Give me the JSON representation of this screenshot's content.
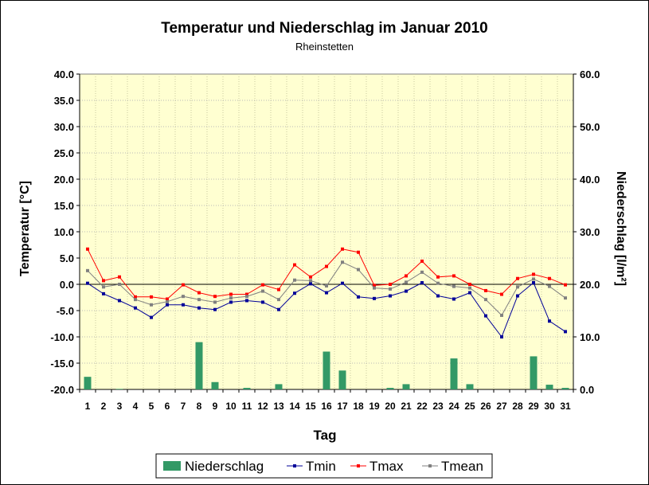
{
  "chart_data": {
    "type": "bar+line",
    "title": "Temperatur und Niederschlag im Januar 2010",
    "subtitle": "Rheinstetten",
    "xlabel": "Tag",
    "ylabel_left": "Temperatur [°C]",
    "ylabel_right": "Niederschlag [l/m²]",
    "ylim_left": [
      -20,
      40
    ],
    "ylim_right": [
      0,
      60
    ],
    "yticks_left": [
      "40.0",
      "35.0",
      "30.0",
      "25.0",
      "20.0",
      "15.0",
      "10.0",
      "5.0",
      "0.0",
      "-5.0",
      "-10.0",
      "-15.0",
      "-20.0"
    ],
    "yticks_right": [
      "60.0",
      "50.0",
      "40.0",
      "30.0",
      "20.0",
      "10.0",
      "0.0"
    ],
    "categories": [
      "1",
      "2",
      "3",
      "4",
      "5",
      "6",
      "7",
      "8",
      "9",
      "10",
      "11",
      "12",
      "13",
      "14",
      "15",
      "16",
      "17",
      "18",
      "19",
      "20",
      "21",
      "22",
      "23",
      "24",
      "25",
      "26",
      "27",
      "28",
      "29",
      "30",
      "31"
    ],
    "grid": "horizontal",
    "legend_position": "bottom",
    "bars": {
      "name": "Niederschlag",
      "color": "#339966",
      "values": [
        2.4,
        0,
        0.1,
        0,
        0,
        0,
        0,
        9.0,
        1.4,
        0,
        0.3,
        0,
        1.0,
        0,
        0,
        7.2,
        3.6,
        0,
        0,
        0.3,
        1.0,
        0,
        0,
        5.9,
        1.0,
        0,
        0,
        0,
        6.3,
        0.9,
        0.3
      ]
    },
    "series": [
      {
        "name": "Tmin",
        "color": "#000099",
        "values": [
          0.2,
          -1.8,
          -3.1,
          -4.5,
          -6.3,
          -3.9,
          -3.9,
          -4.5,
          -4.8,
          -3.4,
          -3.1,
          -3.4,
          -4.8,
          -1.7,
          0.1,
          -1.6,
          0.2,
          -2.4,
          -2.7,
          -2.2,
          -1.3,
          0.3,
          -2.2,
          -2.8,
          -1.6,
          -6.0,
          -10.0,
          -2.2,
          0.3,
          -7.0,
          -9.0
        ]
      },
      {
        "name": "Tmax",
        "color": "#ff0000",
        "values": [
          6.7,
          0.7,
          1.4,
          -2.4,
          -2.4,
          -2.8,
          -0.1,
          -1.6,
          -2.3,
          -1.9,
          -1.9,
          -0.1,
          -1.0,
          3.7,
          1.4,
          3.4,
          6.7,
          6.1,
          -0.2,
          0.0,
          1.6,
          4.4,
          1.4,
          1.6,
          0.0,
          -1.2,
          -1.9,
          1.1,
          1.9,
          1.1,
          -0.1
        ]
      },
      {
        "name": "Tmean",
        "color": "#808080",
        "values": [
          2.6,
          -0.5,
          0.0,
          -2.9,
          -3.9,
          -3.3,
          -2.3,
          -2.9,
          -3.4,
          -2.6,
          -2.3,
          -1.3,
          -2.9,
          0.8,
          0.7,
          -0.3,
          4.2,
          2.8,
          -0.7,
          -0.9,
          0.4,
          2.3,
          0.2,
          -0.4,
          -0.7,
          -2.9,
          -5.9,
          -0.5,
          1.0,
          -0.4,
          -2.6
        ]
      }
    ]
  }
}
